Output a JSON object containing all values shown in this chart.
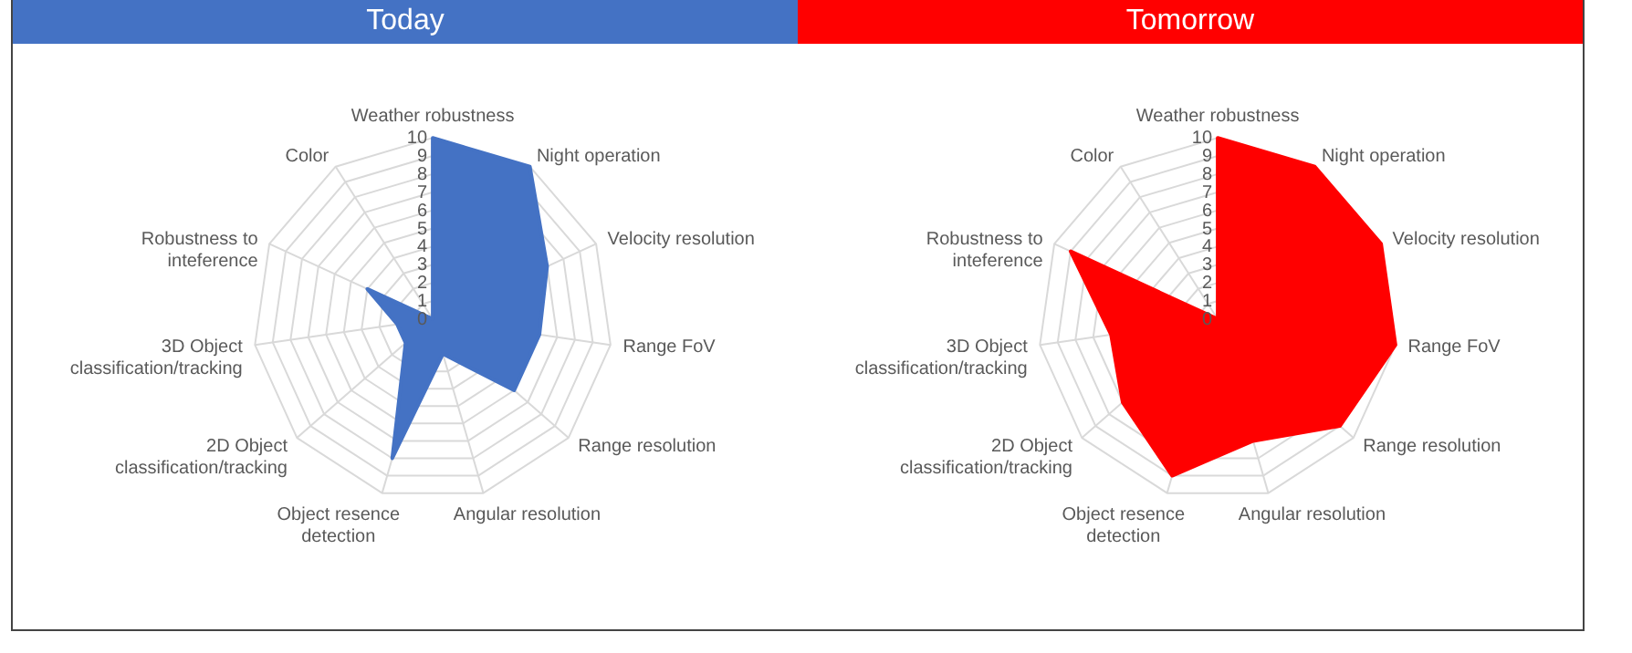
{
  "chart_data": [
    {
      "type": "radar",
      "title": "Today",
      "categories": [
        "Weather robustness",
        "Night operation",
        "Velocity resolution",
        "Range FoV",
        "Range resolution",
        "Angular resolution",
        "Object resence detection",
        "2D Object classification/tracking",
        "3D Object classification/tracking",
        "Robustness to inteference",
        "Color"
      ],
      "series": [
        {
          "color": "#4472c4",
          "values": [
            10,
            10,
            7,
            6,
            6,
            2,
            8,
            2,
            2,
            4,
            0
          ]
        }
      ],
      "ylim": [
        0,
        10
      ],
      "yticks": [
        0,
        1,
        2,
        3,
        4,
        5,
        6,
        7,
        8,
        9,
        10
      ],
      "grid": true
    },
    {
      "type": "radar",
      "title": "Tomorrow",
      "categories": [
        "Weather robustness",
        "Night operation",
        "Velocity resolution",
        "Range FoV",
        "Range resolution",
        "Angular resolution",
        "Object resence detection",
        "2D Object classification/tracking",
        "3D Object classification/tracking",
        "Robustness to inteference",
        "Color"
      ],
      "series": [
        {
          "color": "#ff0000",
          "values": [
            10,
            10,
            10,
            10,
            9,
            7,
            9,
            7,
            6,
            9,
            0
          ]
        }
      ],
      "ylim": [
        0,
        10
      ],
      "yticks": [
        0,
        1,
        2,
        3,
        4,
        5,
        6,
        7,
        8,
        9,
        10
      ],
      "grid": true
    }
  ]
}
